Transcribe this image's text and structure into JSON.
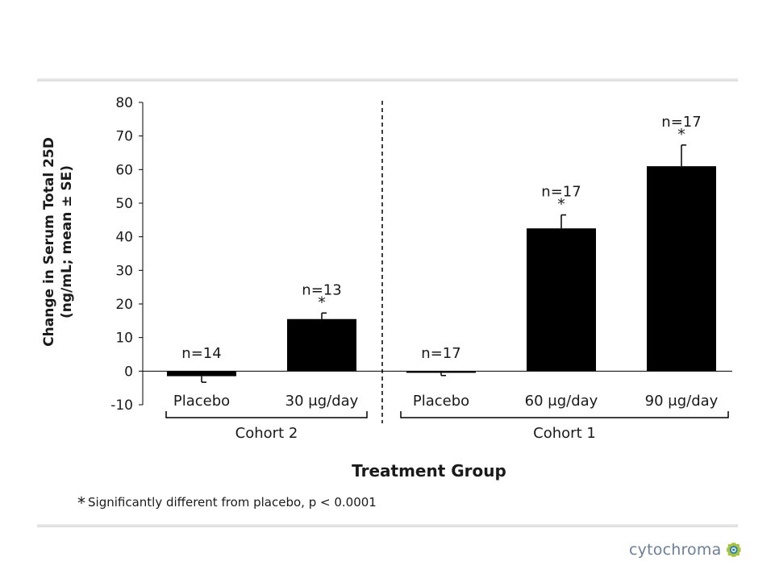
{
  "chart_data": {
    "type": "bar",
    "ylabel_line1": "Change in Serum Total 25D",
    "ylabel_line2": "(ng/mL; mean ± SE)",
    "xlabel": "Treatment Group",
    "ylim": [
      -10,
      80
    ],
    "yticks": [
      80,
      70,
      60,
      50,
      40,
      30,
      20,
      10,
      0,
      -10
    ],
    "grid": false,
    "categories": [
      "Placebo",
      "30 μg/day",
      "Placebo",
      "60 μg/day",
      "90 μg/day"
    ],
    "values": [
      -1.5,
      15.5,
      -0.5,
      42.5,
      61
    ],
    "errors": [
      1.8,
      1.8,
      0.8,
      4,
      6.3
    ],
    "n_labels": [
      "n=14",
      "n=13",
      "n=17",
      "n=17",
      "n=17"
    ],
    "significance": [
      "",
      "*",
      "",
      "*",
      "*"
    ],
    "groups": [
      {
        "label": "Cohort 2",
        "categories": [
          0,
          1
        ]
      },
      {
        "label": "Cohort 1",
        "categories": [
          2,
          3,
          4
        ]
      }
    ],
    "bar_color": "#000000"
  },
  "footnote": {
    "star": "*",
    "text": "Significantly different from placebo, p < 0.0001"
  },
  "logo": {
    "text": "cytochroma",
    "colors": {
      "outer": "#a8c23a",
      "ring": "#2c7fb8",
      "center": "#ffffff"
    }
  }
}
